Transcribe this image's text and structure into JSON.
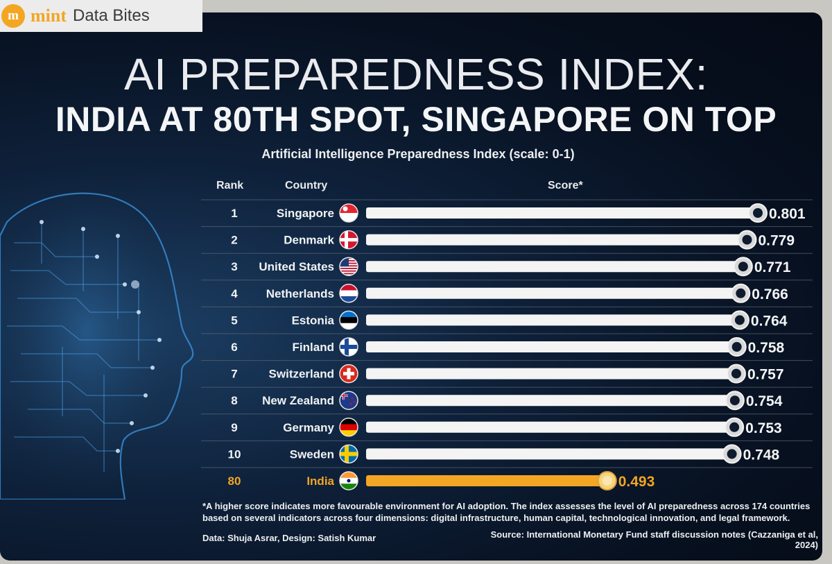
{
  "brand": {
    "logo_text": "m",
    "name": "mint",
    "section": "Data Bites"
  },
  "chart_data": {
    "type": "bar",
    "title": "AI PREPAREDNESS INDEX:",
    "subtitle": "INDIA AT 80TH SPOT, SINGAPORE ON TOP",
    "chart_title": "Artificial Intelligence Preparedness Index (scale: 0-1)",
    "headers": {
      "rank": "Rank",
      "country": "Country",
      "score": "Score*"
    },
    "rows": [
      {
        "rank": "1",
        "country": "Singapore",
        "score": 0.801,
        "score_label": "0.801",
        "flag": "singapore-flag"
      },
      {
        "rank": "2",
        "country": "Denmark",
        "score": 0.779,
        "score_label": "0.779",
        "flag": "denmark-flag"
      },
      {
        "rank": "3",
        "country": "United States",
        "score": 0.771,
        "score_label": "0.771",
        "flag": "united-states-flag"
      },
      {
        "rank": "4",
        "country": "Netherlands",
        "score": 0.766,
        "score_label": "0.766",
        "flag": "netherlands-flag"
      },
      {
        "rank": "5",
        "country": "Estonia",
        "score": 0.764,
        "score_label": "0.764",
        "flag": "estonia-flag"
      },
      {
        "rank": "6",
        "country": "Finland",
        "score": 0.758,
        "score_label": "0.758",
        "flag": "finland-flag"
      },
      {
        "rank": "7",
        "country": "Switzerland",
        "score": 0.757,
        "score_label": "0.757",
        "flag": "switzerland-flag"
      },
      {
        "rank": "8",
        "country": "New Zealand",
        "score": 0.754,
        "score_label": "0.754",
        "flag": "new-zealand-flag"
      },
      {
        "rank": "9",
        "country": "Germany",
        "score": 0.753,
        "score_label": "0.753",
        "flag": "germany-flag"
      },
      {
        "rank": "10",
        "country": "Sweden",
        "score": 0.748,
        "score_label": "0.748",
        "flag": "sweden-flag"
      },
      {
        "rank": "80",
        "country": "India",
        "score": 0.493,
        "score_label": "0.493",
        "flag": "india-flag",
        "highlight": true
      }
    ],
    "colors": {
      "bar": "#f4f4f4",
      "highlight": "#f3a623",
      "knob_outer": "#d9d9d9",
      "knob_inner": "#0e1b2e"
    }
  },
  "footnote": {
    "line1": "*A higher score indicates more favourable environment for AI adoption. The index assesses the level of AI preparedness across 174 countries",
    "line2": "based on several indicators across four dimensions: digital infrastructure, human capital, technological innovation, and legal framework.",
    "credits": "Data: Shuja Asrar, Design: Satish Kumar",
    "source": "Source: International Monetary Fund staff discussion notes (Cazzaniga et al, 2024)"
  }
}
